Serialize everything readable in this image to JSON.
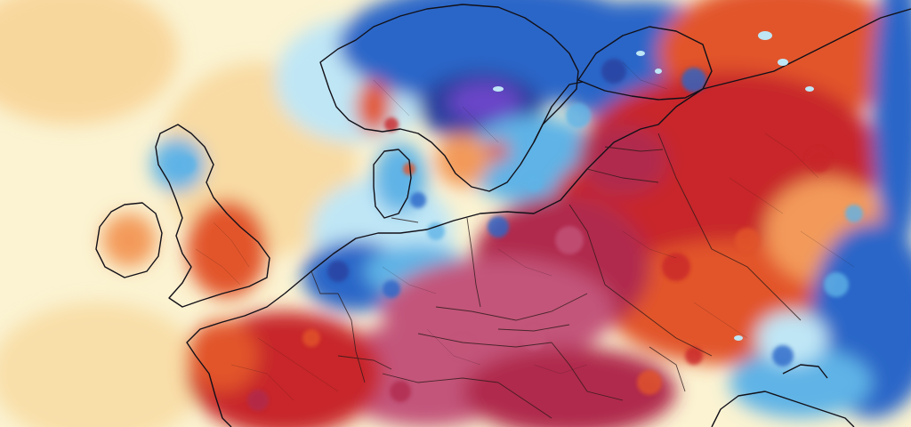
{
  "map": {
    "kind": "temperature-anomaly-map",
    "region": "Europe",
    "legend": "none",
    "labels": "none",
    "colors": {
      "ocean_neutral": "#fbf3d2",
      "ocean_warm": "#f7d08e",
      "warm_light": "#f39a5a",
      "warm": "#e2542a",
      "hot": "#c8262a",
      "very_hot": "#b02c4e",
      "extreme_hot": "#c3557a",
      "cool_light": "#bfe6f5",
      "cool": "#5fb3e6",
      "cold": "#2c66c8",
      "very_cold": "#2b3f9e",
      "extreme_cold": "#6a45c8",
      "border": "#2a1a18",
      "coastline": "#121018"
    }
  }
}
